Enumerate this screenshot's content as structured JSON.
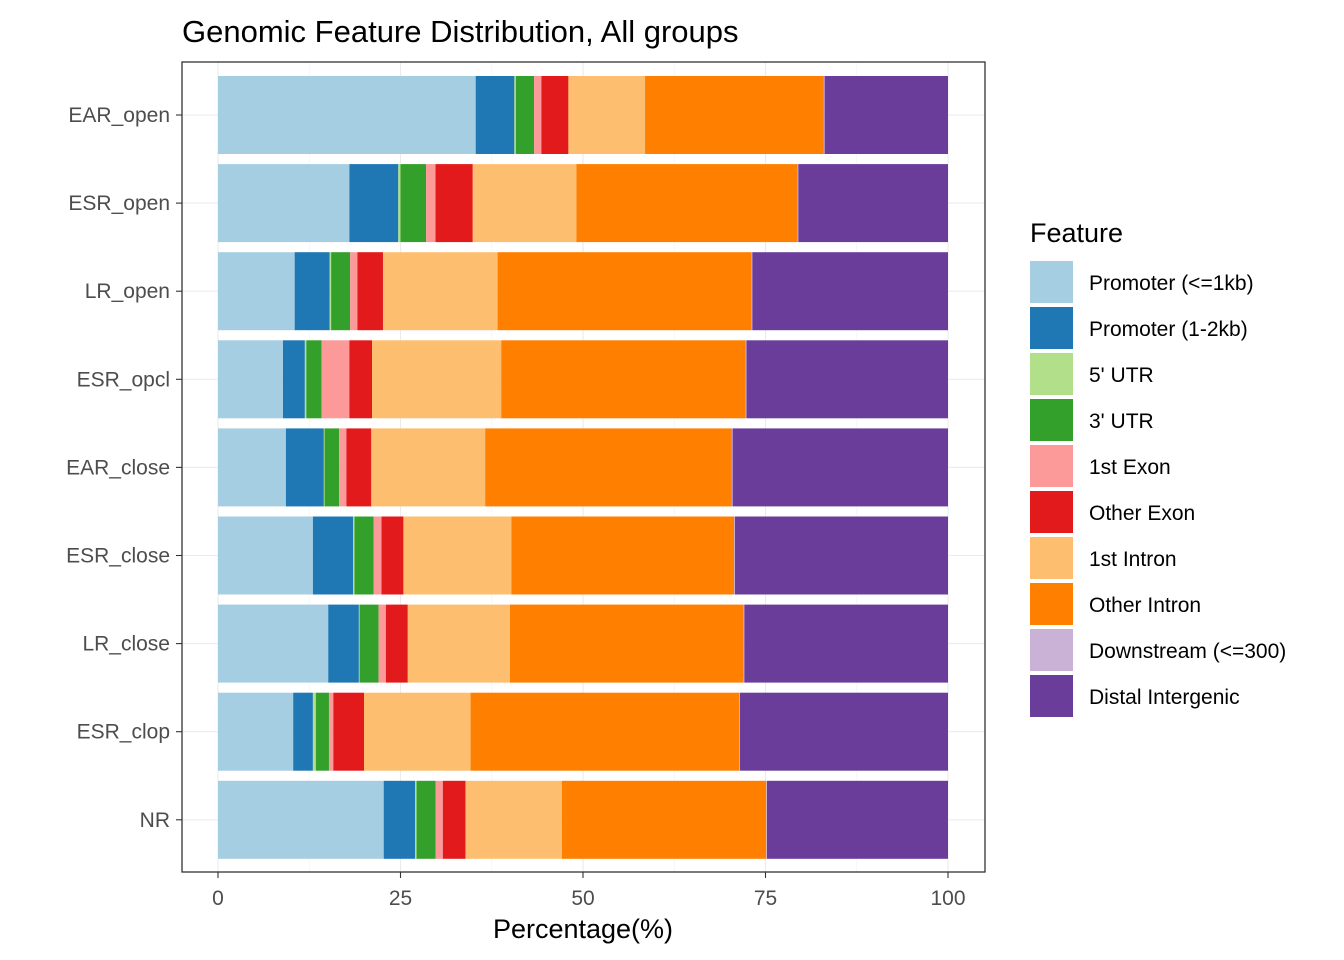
{
  "chart_data": {
    "type": "bar",
    "orientation": "horizontal",
    "stacked": true,
    "title": "Genomic Feature Distribution, All groups",
    "xlabel": "Percentage(%)",
    "ylabel": "",
    "xlim": [
      0,
      100
    ],
    "xticks": [
      "0",
      "25",
      "50",
      "75",
      "100"
    ],
    "grid": true,
    "legend_title": "Feature",
    "legend_position": "right",
    "categories": [
      "EAR_open",
      "ESR_open",
      "LR_open",
      "ESR_opcl",
      "EAR_close",
      "ESR_close",
      "LR_close",
      "ESR_clop",
      "NR"
    ],
    "series": [
      {
        "name": "Promoter (<=1kb)",
        "color": "#A6CEE3",
        "values": [
          35.3,
          18.0,
          10.5,
          8.9,
          9.3,
          13.0,
          15.1,
          10.3,
          22.7
        ]
      },
      {
        "name": "Promoter (1-2kb)",
        "color": "#1F78B4",
        "values": [
          5.3,
          6.7,
          4.8,
          3.0,
          5.2,
          5.5,
          4.2,
          2.7,
          4.3
        ]
      },
      {
        "name": "5' UTR",
        "color": "#B2DF8A",
        "values": [
          0.2,
          0.3,
          0.2,
          0.2,
          0.1,
          0.2,
          0.1,
          0.4,
          0.2
        ]
      },
      {
        "name": "3' UTR",
        "color": "#33A02C",
        "values": [
          2.5,
          3.5,
          2.6,
          2.1,
          2.0,
          2.6,
          2.6,
          1.8,
          2.6
        ]
      },
      {
        "name": "1st Exon",
        "color": "#FB9A99",
        "values": [
          1.0,
          1.3,
          1.0,
          3.8,
          1.0,
          1.1,
          1.0,
          0.6,
          1.0
        ]
      },
      {
        "name": "Other Exon",
        "color": "#E31A1C",
        "values": [
          3.7,
          5.1,
          3.5,
          3.1,
          3.4,
          3.0,
          3.0,
          4.2,
          3.1
        ]
      },
      {
        "name": "1st Intron",
        "color": "#FDBF6F",
        "values": [
          10.5,
          14.2,
          15.7,
          17.7,
          15.6,
          14.8,
          14.0,
          14.6,
          13.2
        ]
      },
      {
        "name": "Other Intron",
        "color": "#FF7F00",
        "values": [
          24.5,
          30.3,
          34.8,
          33.5,
          33.8,
          30.5,
          32.0,
          36.8,
          28.0
        ]
      },
      {
        "name": "Downstream (<=300)",
        "color": "#CAB2D6",
        "values": [
          0.1,
          0.1,
          0.1,
          0.1,
          0.1,
          0.1,
          0.1,
          0.1,
          0.1
        ]
      },
      {
        "name": "Distal Intergenic",
        "color": "#6A3D9A",
        "values": [
          16.9,
          20.5,
          26.8,
          27.6,
          29.5,
          29.2,
          27.9,
          28.5,
          24.8
        ]
      }
    ]
  }
}
